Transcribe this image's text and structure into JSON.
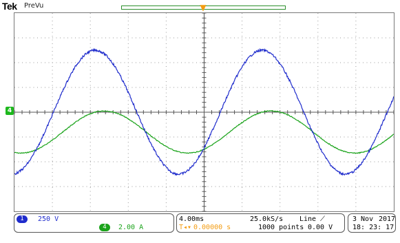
{
  "header": {
    "brand": "Tek",
    "mode": "PreVu"
  },
  "markers": {
    "trigger": "T",
    "trigger_position": "▼",
    "ch4_ground": "4"
  },
  "channels": {
    "ch1": {
      "badge": "1",
      "scale": "250 V",
      "color": "#1f2ccc"
    },
    "ch4": {
      "badge": "4",
      "scale": "2.00 A",
      "color": "#1aa31a"
    }
  },
  "timebase": {
    "time_div": "4.00ms",
    "sample_rate": "25.0kS/s",
    "trigger_source": "Line",
    "trigger_slope": "⟋",
    "trigger_offset": "0.00000 s",
    "points": "1000 points",
    "trigger_level": "0.00 V"
  },
  "datetime": {
    "date": "3 Nov",
    "year": "2017",
    "time": "18: 23: 17"
  },
  "graticule": {
    "x_divisions": 10,
    "y_divisions": 8
  },
  "waveforms": {
    "ch1_blue": {
      "amplitude_div": 2.5,
      "period_div": 4.4,
      "phase_deg": -90
    },
    "ch4_green": {
      "amplitude_div": 0.85,
      "offset_div": -0.8,
      "period_div": 4.4,
      "phase_deg": -110
    }
  }
}
